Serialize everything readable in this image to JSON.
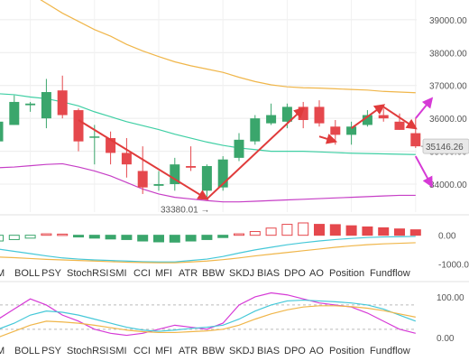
{
  "chart_data": {
    "type": "candlestick",
    "main": {
      "price_ticks": [
        "39000.00",
        "38000.00",
        "37000.00",
        "36000.00",
        "35000.00",
        "34000.00"
      ],
      "ylim": [
        33150,
        39600
      ],
      "grid": true,
      "current_price_label": "35146.26",
      "low_annotation": "33380.01",
      "candles": [
        {
          "o": 35300,
          "h": 36300,
          "l": 35200,
          "c": 35900
        },
        {
          "o": 35800,
          "h": 36700,
          "l": 35800,
          "c": 36500
        },
        {
          "o": 36400,
          "h": 36500,
          "l": 36200,
          "c": 36450
        },
        {
          "o": 36000,
          "h": 37200,
          "l": 35700,
          "c": 36800
        },
        {
          "o": 36850,
          "h": 37300,
          "l": 36000,
          "c": 36100
        },
        {
          "o": 36250,
          "h": 36300,
          "l": 35000,
          "c": 35300
        },
        {
          "o": 35450,
          "h": 35800,
          "l": 34600,
          "c": 35450
        },
        {
          "o": 35400,
          "h": 35600,
          "l": 34600,
          "c": 34950
        },
        {
          "o": 34950,
          "h": 35400,
          "l": 34200,
          "c": 34600
        },
        {
          "o": 34400,
          "h": 35150,
          "l": 33700,
          "c": 33900
        },
        {
          "o": 33950,
          "h": 34400,
          "l": 33800,
          "c": 34000
        },
        {
          "o": 34000,
          "h": 34800,
          "l": 33800,
          "c": 34600
        },
        {
          "o": 34550,
          "h": 35150,
          "l": 34400,
          "c": 34500
        },
        {
          "o": 33800,
          "h": 34600,
          "l": 33600,
          "c": 34550
        },
        {
          "o": 33900,
          "h": 34850,
          "l": 33800,
          "c": 34750
        },
        {
          "o": 34800,
          "h": 35550,
          "l": 34700,
          "c": 35350
        },
        {
          "o": 35300,
          "h": 36100,
          "l": 35200,
          "c": 36000
        },
        {
          "o": 35850,
          "h": 36450,
          "l": 35800,
          "c": 36100
        },
        {
          "o": 35900,
          "h": 36450,
          "l": 35700,
          "c": 36350
        },
        {
          "o": 36350,
          "h": 36500,
          "l": 35700,
          "c": 35950
        },
        {
          "o": 36350,
          "h": 36550,
          "l": 35750,
          "c": 35850
        },
        {
          "o": 35750,
          "h": 35950,
          "l": 35200,
          "c": 35500
        },
        {
          "o": 35500,
          "h": 35900,
          "l": 35200,
          "c": 35750
        },
        {
          "o": 35800,
          "h": 36250,
          "l": 35750,
          "c": 36100
        },
        {
          "o": 36100,
          "h": 36300,
          "l": 35900,
          "c": 36000
        },
        {
          "o": 35900,
          "h": 36150,
          "l": 35650,
          "c": 35650
        },
        {
          "o": 35550,
          "h": 36000,
          "l": 35100,
          "c": 35150
        }
      ],
      "bands": {
        "upper": [
          40400,
          40200,
          39800,
          39500,
          39200,
          38950,
          38700,
          38500,
          38250,
          38050,
          37880,
          37720,
          37600,
          37500,
          37400,
          37250,
          37120,
          37020,
          36960,
          36930,
          36920,
          36900,
          36880,
          36860,
          36820,
          36800,
          36780
        ],
        "middle": [
          36750,
          36720,
          36650,
          36600,
          36500,
          36380,
          36200,
          36050,
          35900,
          35780,
          35660,
          35520,
          35400,
          35280,
          35180,
          35100,
          35050,
          35000,
          35000,
          35000,
          34980,
          34960,
          34940,
          34930,
          34920,
          34910,
          34900
        ],
        "lower": [
          34500,
          34520,
          34560,
          34600,
          34620,
          34520,
          34400,
          34250,
          34050,
          33850,
          33700,
          33600,
          33550,
          33500,
          33460,
          33460,
          33480,
          33500,
          33520,
          33540,
          33560,
          33580,
          33600,
          33620,
          33640,
          33660,
          33660
        ]
      },
      "trend_arrows": [
        {
          "from": [
            5,
            35950
          ],
          "to": [
            13,
            33550
          ],
          "color": "#e03b3b"
        },
        {
          "from": [
            13,
            33550
          ],
          "to": [
            19,
            36300
          ],
          "color": "#e03b3b"
        },
        {
          "from": [
            20,
            35450
          ],
          "to": [
            21,
            35300
          ],
          "color": "#e03b3b"
        },
        {
          "from": [
            22,
            35700
          ],
          "to": [
            24,
            36400
          ],
          "color": "#e03b3b"
        },
        {
          "from": [
            24,
            36350
          ],
          "to": [
            26,
            35700
          ],
          "color": "#e03b3b"
        },
        {
          "from": [
            26,
            36000
          ],
          "to": [
            27,
            36600
          ],
          "color": "#d63ad6"
        },
        {
          "from": [
            26,
            34850
          ],
          "to": [
            27,
            33950
          ],
          "color": "#d63ad6"
        }
      ]
    },
    "macd": {
      "ticks": [
        "0.00",
        "-1000.00"
      ],
      "ylim": [
        -1300,
        650
      ],
      "hist": [
        -200,
        -150,
        -100,
        50,
        40,
        -60,
        -100,
        -130,
        -150,
        -200,
        -230,
        -240,
        -200,
        -150,
        -80,
        50,
        130,
        250,
        380,
        430,
        380,
        370,
        330,
        290,
        260,
        220,
        190
      ],
      "dif": [
        -480,
        -560,
        -640,
        -720,
        -790,
        -830,
        -860,
        -880,
        -900,
        -920,
        -930,
        -930,
        -880,
        -830,
        -740,
        -620,
        -510,
        -420,
        -330,
        -260,
        -200,
        -150,
        -110,
        -80,
        -60,
        -50,
        -40
      ],
      "dea": [
        -760,
        -780,
        -810,
        -840,
        -860,
        -880,
        -900,
        -920,
        -940,
        -950,
        -960,
        -960,
        -930,
        -900,
        -850,
        -790,
        -720,
        -660,
        -600,
        -540,
        -480,
        -420,
        -370,
        -330,
        -300,
        -280,
        -260
      ]
    },
    "oscillator": {
      "ticks": [
        "100.00",
        "0.00"
      ],
      "ylim": [
        -25,
        120
      ],
      "k": [
        45,
        70,
        95,
        80,
        55,
        40,
        20,
        10,
        5,
        10,
        20,
        30,
        25,
        20,
        35,
        80,
        100,
        110,
        105,
        95,
        85,
        80,
        75,
        60,
        40,
        20,
        10
      ],
      "d": [
        20,
        35,
        55,
        65,
        62,
        55,
        45,
        35,
        25,
        18,
        15,
        18,
        22,
        25,
        30,
        45,
        65,
        80,
        90,
        92,
        90,
        88,
        85,
        80,
        70,
        55,
        40
      ],
      "j": [
        0,
        15,
        30,
        40,
        38,
        35,
        30,
        24,
        18,
        14,
        12,
        12,
        14,
        16,
        20,
        30,
        45,
        58,
        68,
        75,
        78,
        78,
        76,
        72,
        66,
        58,
        50
      ],
      "ref_lines": [
        80,
        20
      ]
    },
    "tabs": [
      "M",
      "BOLL",
      "PSY",
      "StochRSI",
      "SMI",
      "CCI",
      "MFI",
      "ATR",
      "BBW",
      "SKDJ",
      "BIAS",
      "DPO",
      "AO",
      "Position",
      "Fundflow"
    ]
  }
}
